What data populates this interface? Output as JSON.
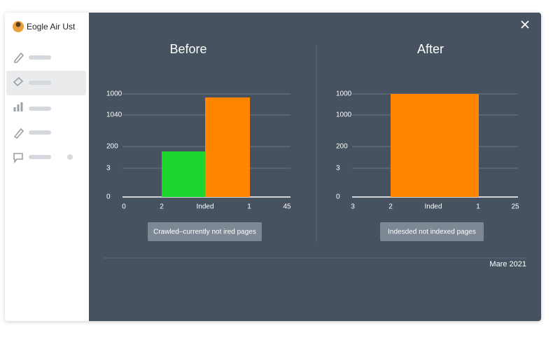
{
  "app": {
    "title": "Eogle Air Ust"
  },
  "panels": [
    {
      "title": "Before",
      "chart": {
        "ylim": [
          0,
          1000
        ],
        "yticks": [
          0,
          {
            "value": 279,
            "label": "3"
          },
          {
            "value": 490,
            "label": "200"
          },
          {
            "value": 796,
            "label": "1040"
          },
          1000
        ],
        "xlabels": [
          "0",
          "2",
          "Inded",
          "1",
          "45"
        ],
        "bars": [
          {
            "value": 442,
            "color": "#1ed42f"
          },
          {
            "value": 966,
            "color": "#ff8500"
          }
        ]
      },
      "button": "Crawled–currently not ired pages"
    },
    {
      "title": "After",
      "chart": {
        "ylim": [
          0,
          1000
        ],
        "yticks": [
          0,
          {
            "value": 279,
            "label": "3"
          },
          {
            "value": 490,
            "label": "200"
          },
          {
            "value": 796,
            "label": "1000"
          },
          1000
        ],
        "xlabels": [
          "3",
          "2",
          "Inded",
          "1",
          "25"
        ],
        "bars": [
          {
            "value": 1000,
            "color": "#ff8500"
          }
        ]
      },
      "button": "Indesded not indexed pages"
    }
  ],
  "footer": {
    "date": "Mare 2021"
  }
}
